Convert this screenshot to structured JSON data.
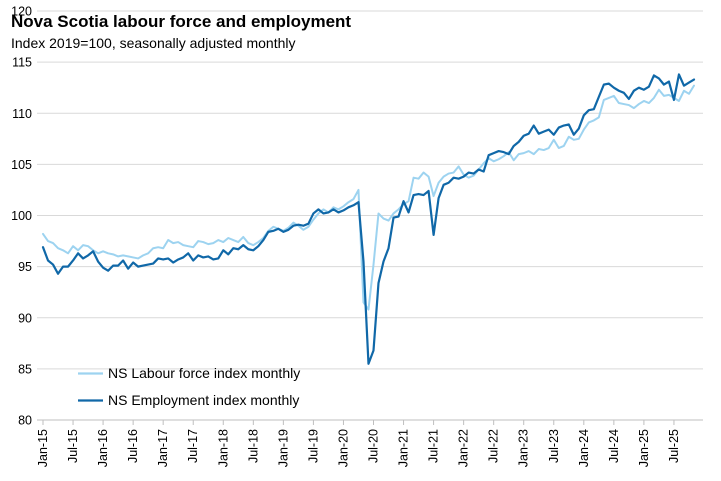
{
  "chart_data": {
    "type": "line",
    "title": "Nova Scotia labour force and employment",
    "subtitle": "Index 2019=100, seasonally adjusted monthly",
    "xlabel": "",
    "ylabel": "",
    "ylim": [
      80,
      120
    ],
    "yticks": [
      80,
      85,
      90,
      95,
      100,
      105,
      110,
      115,
      120
    ],
    "xtick_labels": [
      "Jan-15",
      "Jul-15",
      "Jan-16",
      "Jul-16",
      "Jan-17",
      "Jul-17",
      "Jan-18",
      "Jul-18",
      "Jan-19",
      "Jul-19",
      "Jan-20",
      "Jul-20",
      "Jan-21",
      "Jul-21",
      "Jan-22",
      "Jul-22",
      "Jan-23",
      "Jul-23",
      "Jan-24",
      "Jul-24",
      "Jan-25",
      "Jul-25"
    ],
    "x_start": "2015-01",
    "x_end": "2025-07",
    "grid": "horizontal",
    "legend_position": "bottom-left",
    "series": [
      {
        "name": "NS Labour force index monthly",
        "color": "#9DD3F0",
        "values": [
          98.2,
          97.5,
          97.3,
          96.8,
          96.6,
          96.3,
          97.0,
          96.6,
          97.1,
          97.0,
          96.6,
          96.3,
          96.5,
          96.3,
          96.2,
          96.0,
          96.1,
          96.0,
          95.9,
          95.8,
          96.1,
          96.3,
          96.8,
          96.9,
          96.8,
          97.6,
          97.3,
          97.4,
          97.1,
          97.0,
          96.9,
          97.5,
          97.4,
          97.2,
          97.3,
          97.6,
          97.4,
          97.8,
          97.6,
          97.4,
          97.9,
          97.3,
          97.1,
          97.4,
          97.8,
          98.5,
          98.9,
          98.7,
          98.5,
          98.8,
          99.3,
          99.0,
          98.6,
          98.9,
          99.6,
          100.2,
          100.6,
          100.3,
          100.8,
          100.6,
          100.9,
          101.3,
          101.6,
          102.5,
          91.5,
          90.8,
          95.2,
          100.2,
          99.7,
          99.5,
          100.2,
          100.6,
          101.1,
          101.4,
          103.7,
          103.6,
          104.2,
          103.8,
          101.9,
          103.2,
          103.8,
          104.1,
          104.2,
          104.8,
          104.0,
          103.7,
          103.9,
          104.5,
          105.1,
          105.6,
          105.3,
          105.5,
          105.8,
          106.2,
          105.4,
          106.0,
          106.1,
          106.3,
          106.0,
          106.5,
          106.4,
          106.6,
          107.4,
          106.6,
          106.8,
          107.7,
          107.4,
          107.5,
          108.4,
          109.1,
          109.3,
          109.6,
          111.3,
          111.5,
          111.7,
          111.0,
          110.9,
          110.8,
          110.5,
          110.9,
          111.2,
          111.0,
          111.5,
          112.3,
          111.7,
          111.8,
          111.5,
          111.2,
          112.2,
          111.9,
          112.7
        ]
      },
      {
        "name": "NS Employment index monthly",
        "color": "#1068A8",
        "values": [
          96.9,
          95.6,
          95.2,
          94.3,
          95.0,
          95.0,
          95.6,
          96.3,
          95.8,
          96.1,
          96.5,
          95.5,
          94.9,
          94.6,
          95.1,
          95.1,
          95.6,
          94.8,
          95.4,
          95.0,
          95.1,
          95.2,
          95.3,
          95.8,
          95.7,
          95.8,
          95.4,
          95.7,
          95.9,
          96.3,
          95.6,
          96.1,
          95.9,
          96.0,
          95.7,
          95.8,
          96.6,
          96.2,
          96.8,
          96.7,
          97.1,
          96.7,
          96.6,
          97.0,
          97.6,
          98.4,
          98.5,
          98.7,
          98.4,
          98.6,
          99.0,
          99.1,
          99.0,
          99.2,
          100.2,
          100.6,
          100.2,
          100.3,
          100.6,
          100.3,
          100.5,
          100.8,
          101.0,
          101.3,
          95.5,
          85.5,
          86.8,
          93.4,
          95.5,
          96.8,
          99.8,
          99.9,
          101.4,
          100.3,
          102.0,
          102.1,
          102.0,
          102.4,
          98.1,
          101.7,
          103.0,
          103.2,
          103.7,
          103.6,
          103.8,
          104.2,
          104.1,
          104.5,
          104.3,
          105.9,
          106.1,
          106.3,
          106.2,
          106.0,
          106.8,
          107.2,
          107.8,
          108.0,
          108.8,
          108.0,
          108.2,
          108.4,
          107.9,
          108.6,
          108.8,
          108.9,
          107.9,
          108.5,
          109.8,
          110.3,
          110.4,
          111.6,
          112.8,
          112.9,
          112.5,
          112.2,
          112.0,
          111.4,
          112.2,
          112.5,
          112.3,
          112.6,
          113.7,
          113.4,
          112.8,
          113.1,
          111.3,
          113.8,
          112.7,
          113.0,
          113.3
        ]
      }
    ]
  }
}
